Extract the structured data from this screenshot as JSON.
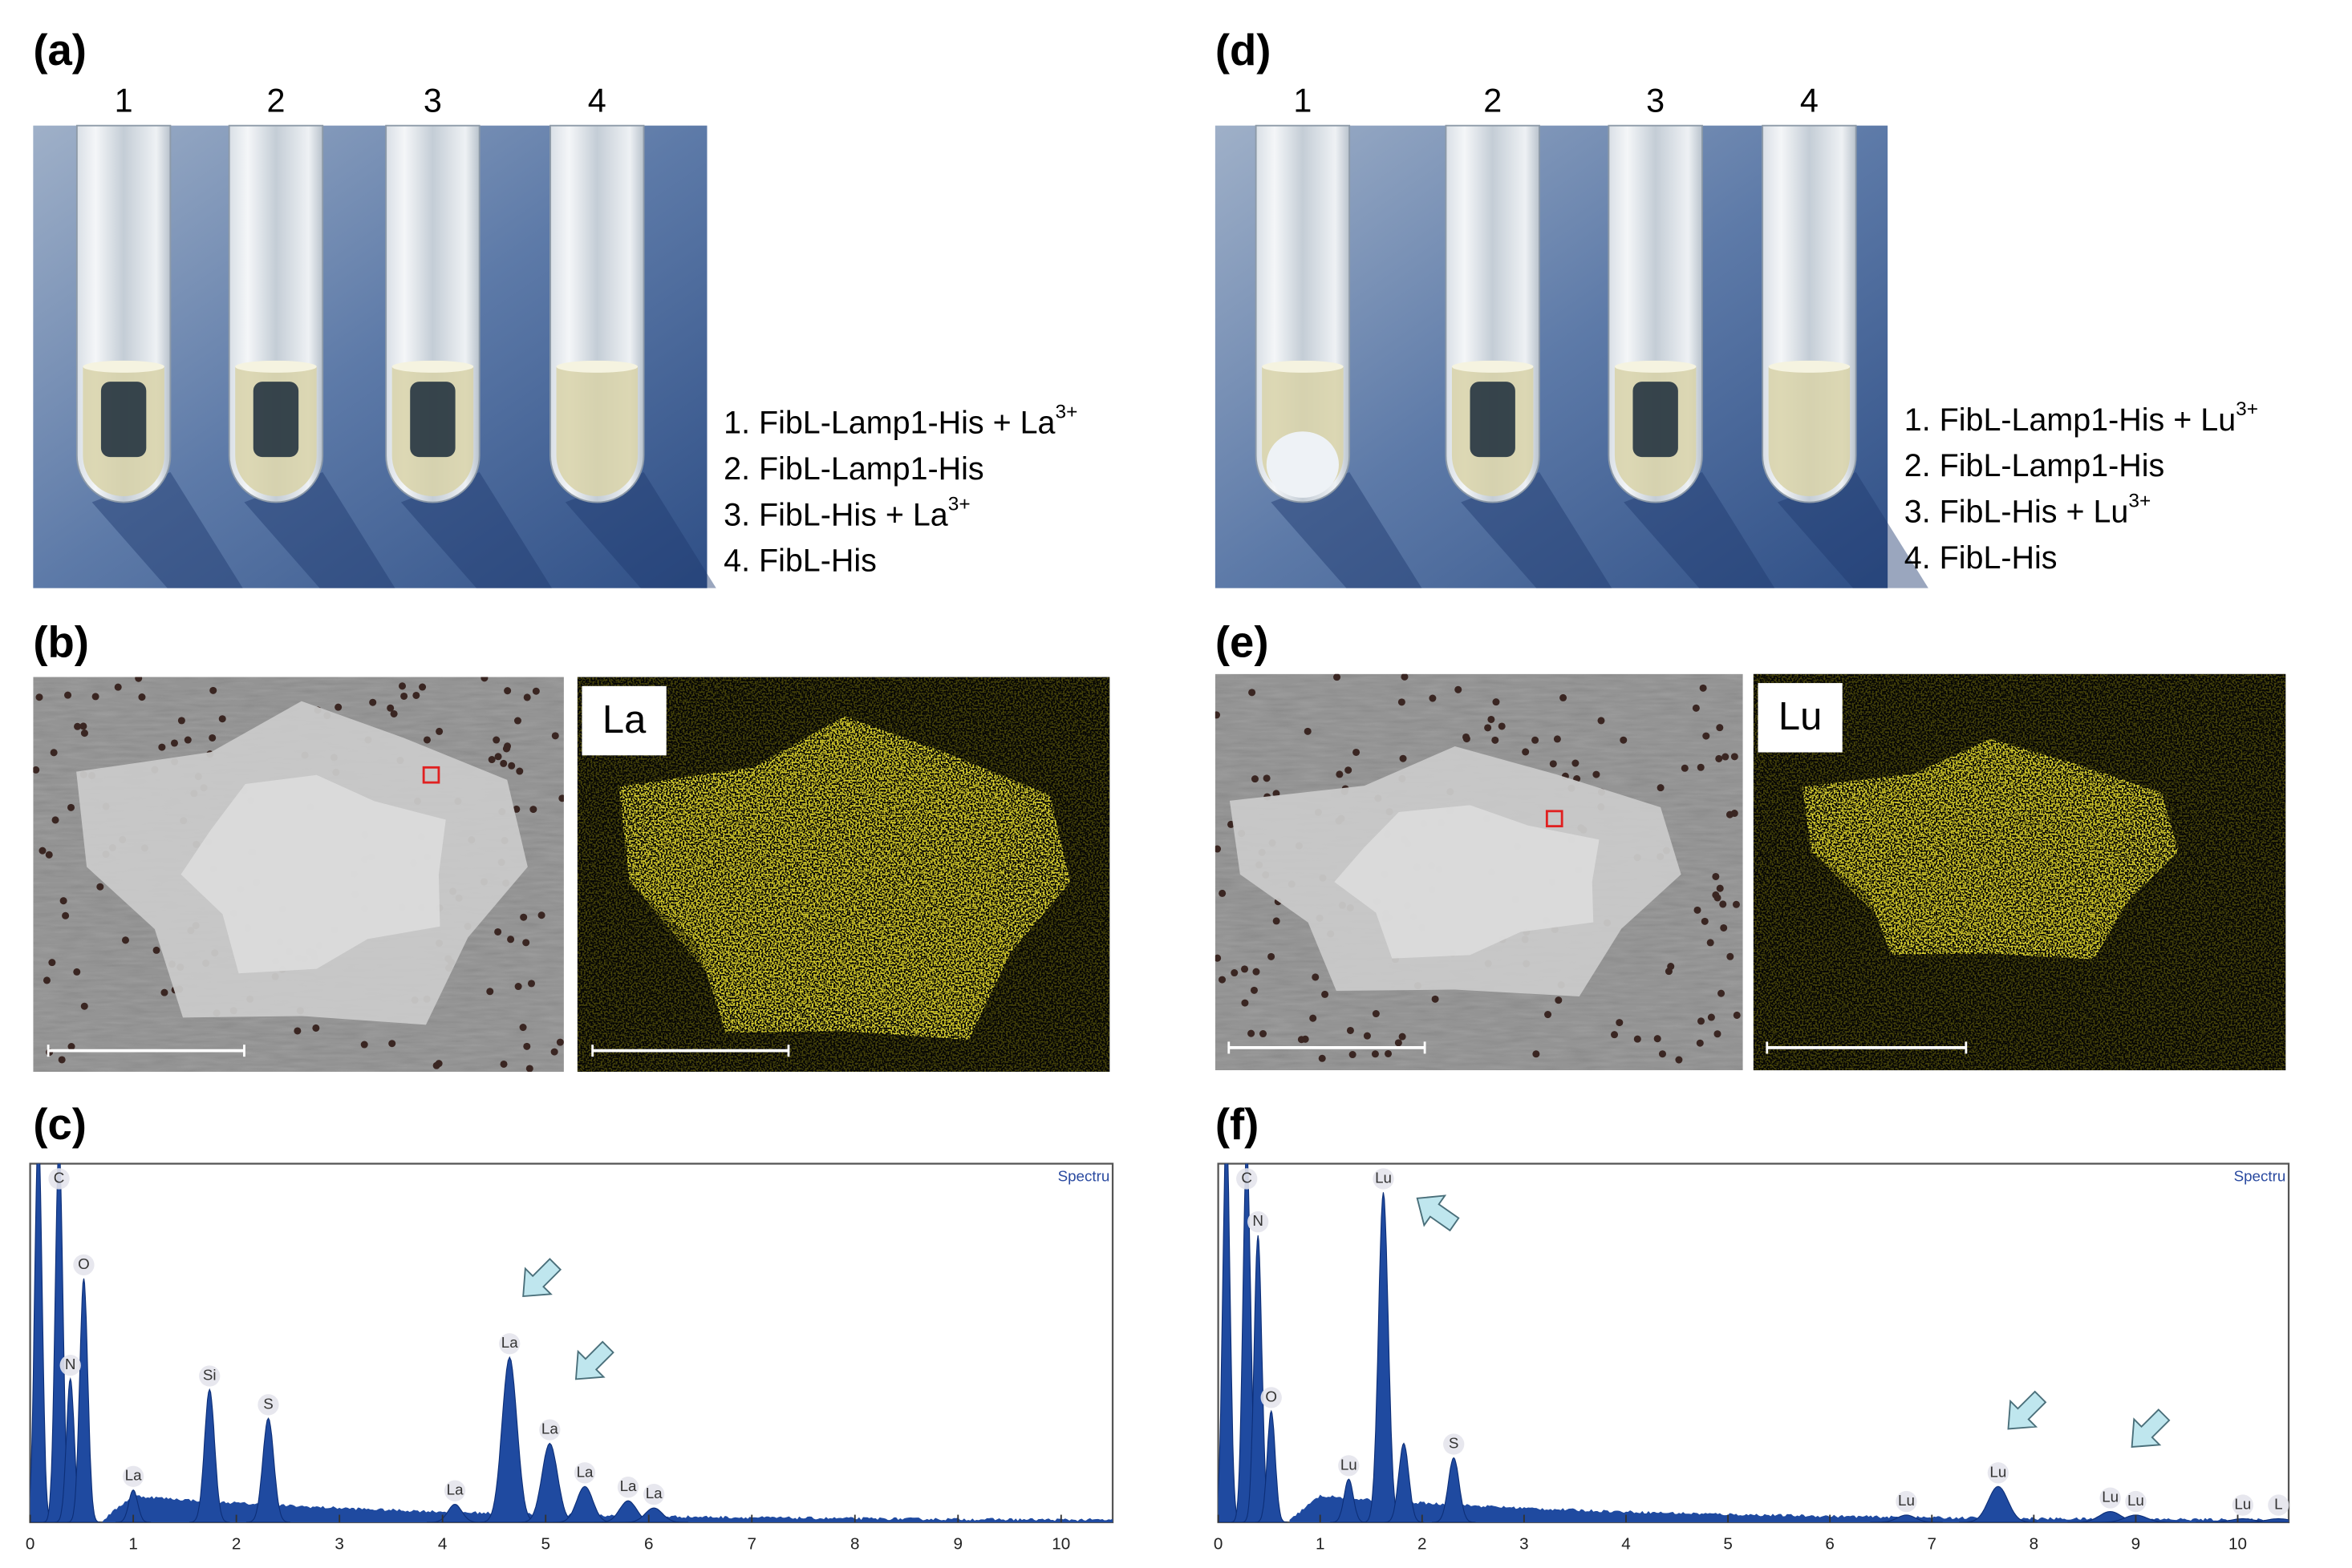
{
  "panels": {
    "a": {
      "label": "(a)",
      "tube_numbers": [
        "1",
        "2",
        "3",
        "4"
      ],
      "legend": [
        {
          "text": "1. FibL-Lamp1-His + La",
          "sup": "3+"
        },
        {
          "text": "2. FibL-Lamp1-His"
        },
        {
          "text": "3. FibL-His + La",
          "sup": "3+"
        },
        {
          "text": "4. FibL-His"
        }
      ]
    },
    "b": {
      "label": "(b)",
      "map_element": "La"
    },
    "c": {
      "label": "(c)",
      "spectrum": {
        "title": "Spectru",
        "xlim": [
          0,
          10.5
        ],
        "xticks": [
          0,
          1,
          2,
          3,
          4,
          5,
          6,
          7,
          8,
          9,
          10
        ],
        "ylim": [
          0,
          100
        ],
        "peaks": [
          {
            "x": 0.08,
            "height": 110
          },
          {
            "label": "C",
            "x": 0.28,
            "height": 105
          },
          {
            "label": "N",
            "x": 0.39,
            "height": 40
          },
          {
            "label": "O",
            "x": 0.52,
            "height": 68
          },
          {
            "label": "La",
            "x": 1.0,
            "height": 9
          },
          {
            "label": "Si",
            "x": 1.74,
            "height": 37
          },
          {
            "label": "S",
            "x": 2.31,
            "height": 29
          },
          {
            "label": "La",
            "x": 4.12,
            "height": 5
          },
          {
            "label": "La",
            "x": 4.65,
            "height": 46
          },
          {
            "label": "La",
            "x": 5.04,
            "height": 22
          },
          {
            "label": "La",
            "x": 5.38,
            "height": 10
          },
          {
            "label": "La",
            "x": 5.8,
            "height": 6
          },
          {
            "label": "La",
            "x": 6.05,
            "height": 4
          }
        ]
      }
    },
    "d": {
      "label": "(d)",
      "tube_numbers": [
        "1",
        "2",
        "3",
        "4"
      ],
      "legend": [
        {
          "text": "1. FibL-Lamp1-His + Lu",
          "sup": "3+"
        },
        {
          "text": "2. FibL-Lamp1-His"
        },
        {
          "text": "3. FibL-His + Lu",
          "sup": "3+"
        },
        {
          "text": "4. FibL-His"
        }
      ]
    },
    "e": {
      "label": "(e)",
      "map_element": "Lu"
    },
    "f": {
      "label": "(f)",
      "spectrum": {
        "title": "Spectru",
        "xlim": [
          0,
          10.5
        ],
        "xticks": [
          0,
          1,
          2,
          3,
          4,
          5,
          6,
          7,
          8,
          9,
          10
        ],
        "ylim": [
          0,
          100
        ],
        "peaks": [
          {
            "x": 0.08,
            "height": 110
          },
          {
            "label": "C",
            "x": 0.28,
            "height": 105
          },
          {
            "label": "N",
            "x": 0.39,
            "height": 80
          },
          {
            "label": "O",
            "x": 0.52,
            "height": 31
          },
          {
            "label": "Lu",
            "x": 1.28,
            "height": 12
          },
          {
            "label": "Lu",
            "x": 1.62,
            "height": 92
          },
          {
            "x": 1.82,
            "height": 22
          },
          {
            "label": "S",
            "x": 2.31,
            "height": 18
          },
          {
            "label": "Lu",
            "x": 6.75,
            "height": 2
          },
          {
            "label": "Lu",
            "x": 7.65,
            "height": 10
          },
          {
            "label": "Lu",
            "x": 8.75,
            "height": 3
          },
          {
            "label": "Lu",
            "x": 9.0,
            "height": 2
          },
          {
            "label": "Lu",
            "x": 10.05,
            "height": 1
          },
          {
            "label": "L",
            "x": 10.4,
            "height": 1
          }
        ]
      }
    }
  }
}
